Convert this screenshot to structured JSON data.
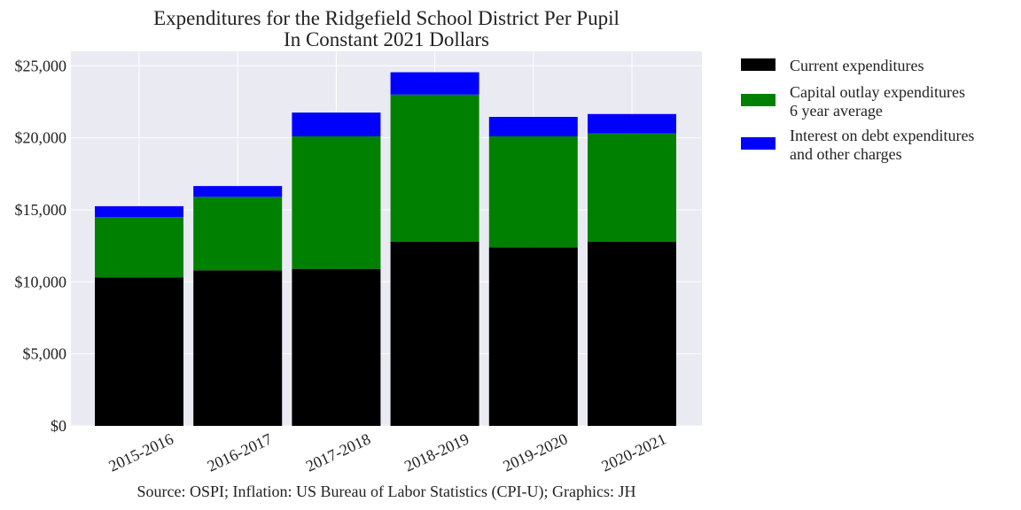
{
  "chart_data": {
    "type": "bar",
    "stacked": true,
    "title_lines": [
      "Expenditures for the Ridgefield School District Per Pupil",
      "In Constant 2021 Dollars"
    ],
    "xlabel": "",
    "ylabel": "",
    "categories": [
      "2015-2016",
      "2016-2017",
      "2017-2018",
      "2018-2019",
      "2019-2020",
      "2020-2021"
    ],
    "series": [
      {
        "name": "Current expenditures",
        "name_lines": [
          "Current expenditures"
        ],
        "color": "#000000",
        "values": [
          10300,
          10800,
          10900,
          12800,
          12400,
          12800
        ]
      },
      {
        "name": "Capital outlay expenditures 6 year average",
        "name_lines": [
          "Capital outlay expenditures",
          "6 year average"
        ],
        "color": "#008000",
        "values": [
          4200,
          5100,
          9200,
          10200,
          7700,
          7500
        ]
      },
      {
        "name": "Interest on debt expenditures and other charges",
        "name_lines": [
          "Interest on debt expenditures",
          "and other charges"
        ],
        "color": "#0000ff",
        "values": [
          750,
          750,
          1650,
          1550,
          1350,
          1350
        ]
      }
    ],
    "ylim": [
      0,
      26000
    ],
    "yticks": [
      0,
      5000,
      10000,
      15000,
      20000,
      25000
    ],
    "ytick_labels": [
      "$0",
      "$5,000",
      "$10,000",
      "$15,000",
      "$20,000",
      "$25,000"
    ],
    "grid": true,
    "legend_position": "outside-right-top",
    "background_color": "#eaeaf2",
    "footer": "Source: OSPI; Inflation: US Bureau of Labor Statistics (CPI-U); Graphics: JH"
  }
}
